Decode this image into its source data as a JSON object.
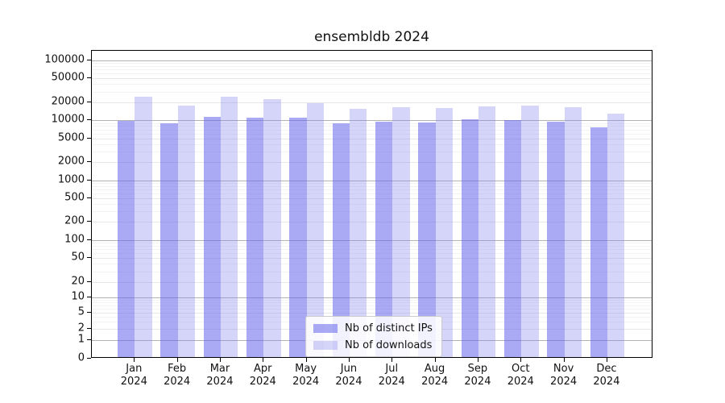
{
  "title": "ensembldb 2024",
  "legend": {
    "items": [
      {
        "label": "Nb of distinct IPs",
        "color": "rgba(100,100,235,0.55)"
      },
      {
        "label": "Nb of downloads",
        "color": "rgba(132,132,238,0.34)"
      }
    ]
  },
  "axes": {
    "y_tick_labels": [
      "100000",
      "50000",
      "20000",
      "10000",
      "5000",
      "2000",
      "1000",
      "500",
      "200",
      "100",
      "50",
      "20",
      "10",
      "5",
      "2",
      "1",
      "0"
    ],
    "x_tick_year": "2024"
  },
  "colors": {
    "series1": "rgba(100,100,235,0.55)",
    "series2": "rgba(132,132,238,0.34)",
    "grid_major": "#b2b2b2",
    "grid_minor_labeled": "#e7e7e7",
    "grid_minor": "#f3f3f3",
    "axis": "#000000"
  },
  "chart_data": {
    "type": "bar",
    "title": "ensembldb 2024",
    "categories": [
      "Jan",
      "Feb",
      "Mar",
      "Apr",
      "May",
      "Jun",
      "Jul",
      "Aug",
      "Sep",
      "Oct",
      "Nov",
      "Dec"
    ],
    "x_second_line": "2024",
    "series": [
      {
        "name": "Nb of distinct IPs",
        "values": [
          9700,
          8900,
          11400,
          11100,
          10900,
          9000,
          9400,
          9100,
          10400,
          10200,
          9600,
          7700
        ]
      },
      {
        "name": "Nb of downloads",
        "values": [
          24700,
          17700,
          25100,
          22800,
          19400,
          15400,
          16700,
          16200,
          16900,
          17600,
          16400,
          12800
        ]
      }
    ],
    "yscale": "symlog",
    "y_ticks": [
      0,
      1,
      2,
      5,
      10,
      20,
      50,
      100,
      200,
      500,
      1000,
      2000,
      5000,
      10000,
      20000,
      50000,
      100000
    ],
    "ylim": [
      0,
      150000
    ],
    "xlabel": "",
    "ylabel": "",
    "grid": true,
    "legend_position": "lower center"
  }
}
